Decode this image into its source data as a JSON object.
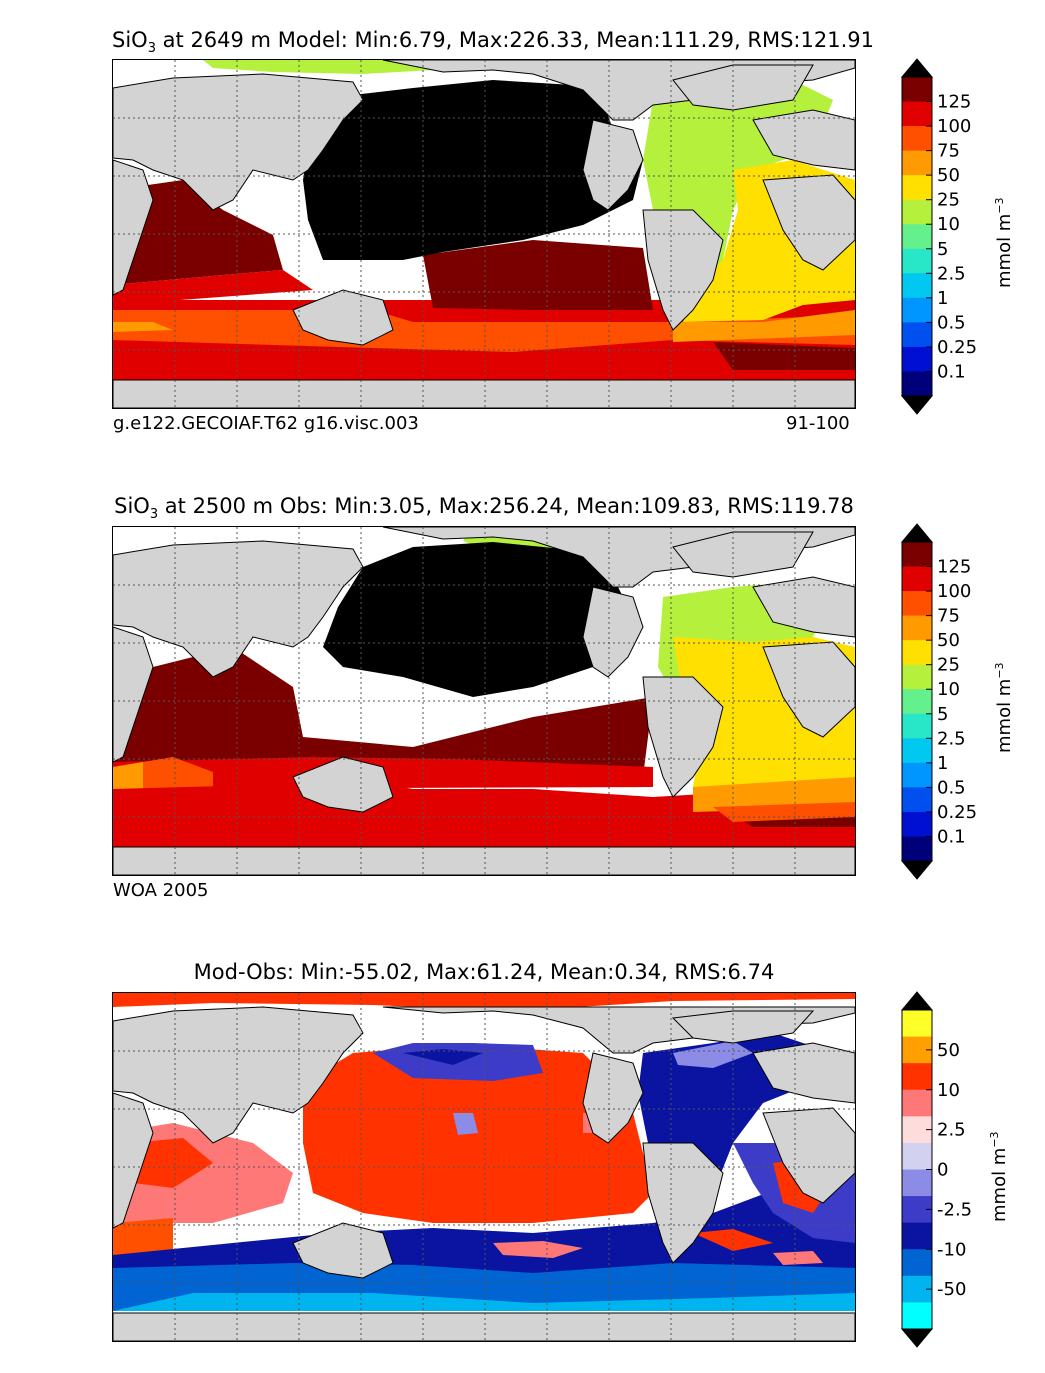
{
  "panels": [
    {
      "title_prefix": "SiO",
      "title_sub": "3",
      "title_rest": " at 2649 m Model: Min:6.79, Max:226.33, Mean:111.29, RMS:121.91",
      "footer_left": "g.e122.GECOIAF.T62 g16.visc.003",
      "footer_right": "91-100"
    },
    {
      "title_prefix": "SiO",
      "title_sub": "3",
      "title_rest": " at 2500 m Obs: Min:3.05, Max:256.24, Mean:109.83, RMS:119.78",
      "footer_left": "WOA 2005",
      "footer_right": ""
    },
    {
      "title_prefix": "",
      "title_sub": "",
      "title_rest": "Mod-Obs: Min:-55.02, Max:61.24, Mean:0.34, RMS:6.74",
      "footer_left": "",
      "footer_right": ""
    }
  ],
  "colorbars": {
    "abs": {
      "ticks": [
        "125",
        "100",
        "75",
        "50",
        "25",
        "10",
        "5",
        "2.5",
        "1",
        "0.5",
        "0.25",
        "0.1"
      ],
      "colors": [
        "#7a0000",
        "#e00000",
        "#ff5000",
        "#ff9a00",
        "#ffe000",
        "#b4f03c",
        "#64f08c",
        "#28e6c8",
        "#00c8f0",
        "#0096ff",
        "#0050f0",
        "#0010d2",
        "#00007a"
      ],
      "top_arrow": "#000000",
      "bottom_arrow": "#000000",
      "unit_label": "mmol m",
      "unit_sup": "−3"
    },
    "diff": {
      "ticks": [
        "50",
        "10",
        "2.5",
        "0",
        "-2.5",
        "-10",
        "-50"
      ],
      "colors": [
        "#ffff28",
        "#ffa000",
        "#ff3200",
        "#ff7878",
        "#ffdcdc",
        "#d2d2f0",
        "#8c8ce6",
        "#3c3cc8",
        "#0a14a0",
        "#0064d2",
        "#00b4f0",
        "#00ffff"
      ],
      "top_arrow": "#000000",
      "bottom_arrow": "#000000",
      "unit_label": "mmol m",
      "unit_sup": "−3"
    }
  },
  "map_colors": {
    "land": "#d3d3d3",
    "no_data": "#ffffff",
    "black_class": "#000000",
    "coastline": "#000000",
    "grid": "#555555"
  }
}
